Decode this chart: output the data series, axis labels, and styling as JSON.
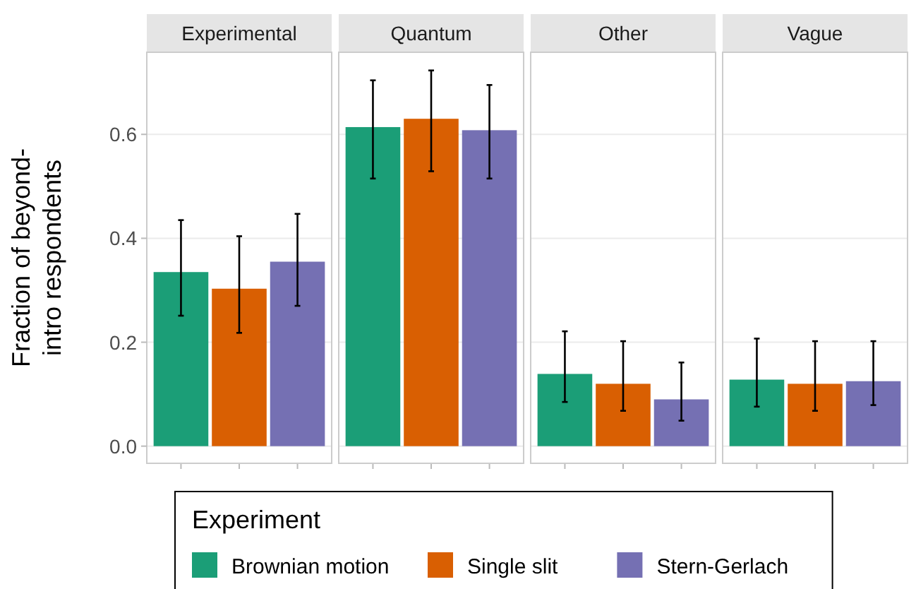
{
  "chart_data": {
    "type": "bar",
    "ylabel": "Fraction of beyond-\nintro respondents",
    "legend_title": "Experiment",
    "legend": "bottom",
    "grid": "y",
    "tick_labels": "y",
    "categories": [
      "Experimental",
      "Quantum",
      "Other",
      "Vague"
    ],
    "ylim": [
      -0.033,
      0.758
    ],
    "yticks": [
      {
        "value": 0,
        "label": "0.0"
      },
      0.2,
      0.4,
      0.6
    ],
    "series": [
      {
        "name": "Brownian motion",
        "color": "#1b9e77",
        "values": [
          0.335,
          0.614,
          0.139,
          0.128
        ],
        "errors": [
          [
            0.251,
            0.435
          ],
          [
            0.515,
            0.704
          ],
          [
            0.085,
            0.221
          ],
          [
            0.076,
            0.207
          ]
        ]
      },
      {
        "name": "Single slit",
        "color": "#d95f02",
        "values": [
          0.303,
          0.63,
          0.12,
          0.12
        ],
        "errors": [
          [
            0.218,
            0.404
          ],
          [
            0.529,
            0.723
          ],
          [
            0.068,
            0.202
          ],
          [
            0.068,
            0.202
          ]
        ]
      },
      {
        "name": "Stern-Gerlach",
        "color": "#7570b3",
        "values": [
          0.355,
          0.608,
          0.09,
          0.125
        ],
        "errors": [
          [
            0.27,
            0.447
          ],
          [
            0.515,
            0.695
          ],
          [
            0.049,
            0.161
          ],
          [
            0.079,
            0.202
          ]
        ]
      }
    ]
  }
}
